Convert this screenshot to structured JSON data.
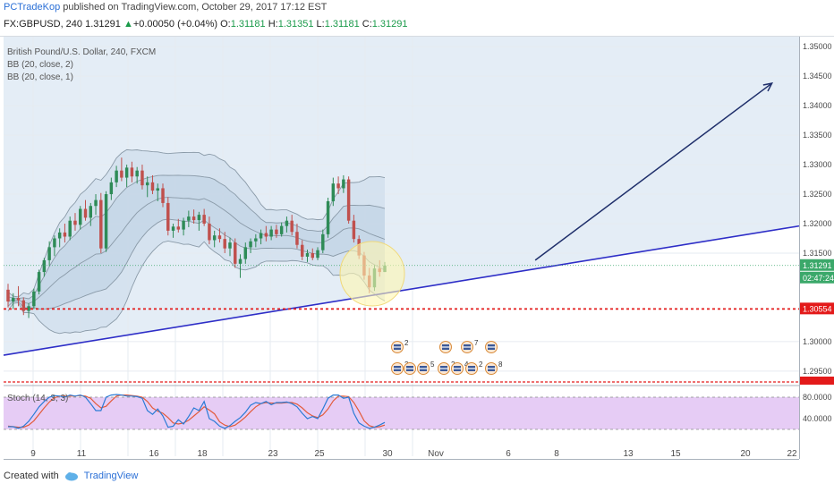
{
  "header": {
    "author": "PCTradeKop",
    "published": "published on TradingView.com, October 29, 2017 17:12 EST",
    "symbol": "FX:GBPUSD, 240",
    "last": "1.31291",
    "change": "+0.00050 (+0.04%)",
    "o_label": "O:",
    "o": "1.31181",
    "h_label": "H:",
    "h": "1.31351",
    "l_label": "L:",
    "l": "1.31181",
    "c_label": "C:",
    "c": "1.31291"
  },
  "legend": {
    "series": "British Pound/U.S. Dollar, 240, FXCM",
    "bb1": "BB (20, close, 2)",
    "bb2": "BB (20, close, 1)",
    "stoch": "Stoch (14, 3, 3)"
  },
  "footer": {
    "created_with": "Created with",
    "brand": "TradingView"
  },
  "colors": {
    "bg": "#ffffff",
    "bull": "#2e8b57",
    "bear": "#c0504d",
    "trend": "#2e2ec7",
    "arrow": "#1f2f6b",
    "support": "#e31a1a",
    "band_fill": "#dbe7f3",
    "stoch_fill": "#e6ccf5",
    "stoch_k": "#2a7bd6",
    "stoch_d": "#e35b3b",
    "price_tag": "#3ba86a"
  },
  "chart_data": {
    "type": "candlestick",
    "price_axis": {
      "ylim": [
        1.2927,
        1.3517
      ],
      "ticks": [
        "1.35000",
        "1.34500",
        "1.34000",
        "1.33500",
        "1.33000",
        "1.32500",
        "1.32000",
        "1.31500",
        "1.30000",
        "1.29500"
      ],
      "current_price_label": "1.31291",
      "countdown_label": "02:47:24",
      "support_label": "1.30554"
    },
    "time_axis": {
      "labels": [
        "9",
        "11",
        "16",
        "18",
        "23",
        "25",
        "30",
        "Nov",
        "6",
        "8",
        "13",
        "15",
        "20",
        "22"
      ]
    },
    "stoch_axis": {
      "ticks": [
        "80.0000",
        "40.0000"
      ]
    },
    "support_level": 1.30554,
    "trendline": [
      [
        0,
        1.2977
      ],
      [
        20.5,
        1.3196
      ]
    ],
    "projection_arrow": [
      [
        13.7,
        1.3138
      ],
      [
        19.8,
        1.3438
      ]
    ],
    "candles": [
      [
        1.3088,
        1.3098,
        1.3058,
        1.3068
      ],
      [
        1.3068,
        1.3082,
        1.3055,
        1.3074
      ],
      [
        1.3074,
        1.3094,
        1.306,
        1.307
      ],
      [
        1.307,
        1.3075,
        1.3045,
        1.3052
      ],
      [
        1.3052,
        1.3065,
        1.304,
        1.306
      ],
      [
        1.306,
        1.309,
        1.3055,
        1.3085
      ],
      [
        1.3085,
        1.3122,
        1.308,
        1.3118
      ],
      [
        1.3118,
        1.3142,
        1.311,
        1.3138
      ],
      [
        1.3138,
        1.317,
        1.3128,
        1.316
      ],
      [
        1.316,
        1.318,
        1.3145,
        1.3175
      ],
      [
        1.3175,
        1.3192,
        1.316,
        1.3185
      ],
      [
        1.3185,
        1.32,
        1.3168,
        1.3178
      ],
      [
        1.3178,
        1.3212,
        1.3172,
        1.3205
      ],
      [
        1.3205,
        1.3218,
        1.3188,
        1.3198
      ],
      [
        1.3198,
        1.323,
        1.319,
        1.3225
      ],
      [
        1.3225,
        1.324,
        1.3205,
        1.321
      ],
      [
        1.321,
        1.3235,
        1.3196,
        1.323
      ],
      [
        1.323,
        1.325,
        1.3215,
        1.324
      ],
      [
        1.324,
        1.3252,
        1.315,
        1.3158
      ],
      [
        1.3158,
        1.3255,
        1.3152,
        1.325
      ],
      [
        1.325,
        1.3278,
        1.324,
        1.327
      ],
      [
        1.327,
        1.3298,
        1.3262,
        1.329
      ],
      [
        1.329,
        1.3312,
        1.3272,
        1.3278
      ],
      [
        1.3278,
        1.33,
        1.3262,
        1.3295
      ],
      [
        1.3295,
        1.3305,
        1.327,
        1.328
      ],
      [
        1.328,
        1.3296,
        1.3268,
        1.329
      ],
      [
        1.329,
        1.33,
        1.3258,
        1.3265
      ],
      [
        1.3265,
        1.328,
        1.3245,
        1.327
      ],
      [
        1.327,
        1.3282,
        1.325,
        1.3256
      ],
      [
        1.3256,
        1.3268,
        1.3238,
        1.326
      ],
      [
        1.326,
        1.3268,
        1.3228,
        1.3235
      ],
      [
        1.3235,
        1.3245,
        1.318,
        1.3188
      ],
      [
        1.3188,
        1.32,
        1.3176,
        1.3195
      ],
      [
        1.3195,
        1.3208,
        1.3185,
        1.319
      ],
      [
        1.319,
        1.321,
        1.318,
        1.3205
      ],
      [
        1.3205,
        1.3222,
        1.3194,
        1.3212
      ],
      [
        1.3212,
        1.3224,
        1.32,
        1.3206
      ],
      [
        1.3206,
        1.322,
        1.3188,
        1.3215
      ],
      [
        1.3215,
        1.3225,
        1.3196,
        1.32
      ],
      [
        1.32,
        1.3212,
        1.3165,
        1.3172
      ],
      [
        1.3172,
        1.3188,
        1.316,
        1.318
      ],
      [
        1.318,
        1.3192,
        1.3168,
        1.3174
      ],
      [
        1.3174,
        1.3186,
        1.315,
        1.3158
      ],
      [
        1.3158,
        1.3176,
        1.3145,
        1.3168
      ],
      [
        1.3168,
        1.3175,
        1.3125,
        1.3132
      ],
      [
        1.3132,
        1.3148,
        1.3108,
        1.314
      ],
      [
        1.314,
        1.3168,
        1.3132,
        1.316
      ],
      [
        1.316,
        1.3175,
        1.315,
        1.317
      ],
      [
        1.317,
        1.3182,
        1.316,
        1.3175
      ],
      [
        1.3175,
        1.319,
        1.3165,
        1.3184
      ],
      [
        1.3184,
        1.3196,
        1.317,
        1.3178
      ],
      [
        1.3178,
        1.3196,
        1.3172,
        1.319
      ],
      [
        1.319,
        1.3198,
        1.3176,
        1.3182
      ],
      [
        1.3182,
        1.3202,
        1.3178,
        1.3196
      ],
      [
        1.3196,
        1.3212,
        1.3185,
        1.3205
      ],
      [
        1.3205,
        1.3215,
        1.318,
        1.3186
      ],
      [
        1.3186,
        1.32,
        1.3158,
        1.3164
      ],
      [
        1.3164,
        1.3172,
        1.3138,
        1.3144
      ],
      [
        1.3144,
        1.3156,
        1.3135,
        1.315
      ],
      [
        1.315,
        1.3158,
        1.3138,
        1.3142
      ],
      [
        1.3142,
        1.316,
        1.3138,
        1.3155
      ],
      [
        1.3155,
        1.319,
        1.315,
        1.3182
      ],
      [
        1.3182,
        1.3244,
        1.3176,
        1.3238
      ],
      [
        1.3238,
        1.3278,
        1.323,
        1.3268
      ],
      [
        1.3268,
        1.328,
        1.325,
        1.326
      ],
      [
        1.326,
        1.3282,
        1.3252,
        1.3275
      ],
      [
        1.3275,
        1.328,
        1.32,
        1.3205
      ],
      [
        1.3205,
        1.3215,
        1.3168,
        1.3174
      ],
      [
        1.3174,
        1.318,
        1.314,
        1.3146
      ],
      [
        1.3146,
        1.3152,
        1.3105,
        1.3112
      ],
      [
        1.3112,
        1.3125,
        1.3082,
        1.3092
      ],
      [
        1.3092,
        1.313,
        1.3086,
        1.3124
      ],
      [
        1.3124,
        1.3138,
        1.311,
        1.3118
      ],
      [
        1.3118,
        1.3135,
        1.3118,
        1.3129
      ]
    ],
    "stoch_k": [
      25,
      25,
      22,
      26,
      35,
      48,
      62,
      72,
      80,
      83,
      82,
      80,
      84,
      82,
      84,
      80,
      68,
      55,
      55,
      80,
      84,
      85,
      84,
      82,
      82,
      81,
      78,
      55,
      48,
      58,
      45,
      24,
      26,
      38,
      30,
      44,
      60,
      55,
      72,
      40,
      35,
      26,
      22,
      27,
      35,
      42,
      52,
      65,
      70,
      68,
      72,
      66,
      70,
      70,
      71,
      68,
      62,
      50,
      40,
      44,
      40,
      58,
      78,
      84,
      84,
      78,
      80,
      50,
      32,
      26,
      22,
      24,
      28,
      33
    ],
    "stoch_d": [
      26,
      25,
      24,
      24,
      28,
      36,
      48,
      60,
      71,
      79,
      82,
      82,
      82,
      82,
      83,
      82,
      78,
      68,
      60,
      63,
      73,
      82,
      84,
      84,
      83,
      82,
      80,
      72,
      60,
      54,
      50,
      42,
      32,
      30,
      32,
      37,
      45,
      53,
      62,
      56,
      49,
      34,
      28,
      25,
      28,
      35,
      43,
      53,
      62,
      68,
      70,
      69,
      69,
      69,
      70,
      70,
      67,
      60,
      51,
      45,
      42,
      47,
      58,
      73,
      82,
      82,
      81,
      70,
      54,
      36,
      27,
      24,
      25,
      28
    ]
  }
}
